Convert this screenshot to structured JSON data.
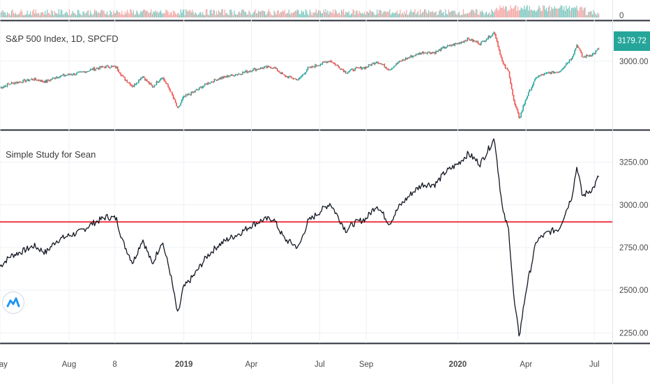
{
  "chart_data": [
    {
      "type": "bar",
      "title": "",
      "series": [
        {
          "name": "",
          "values": []
        }
      ],
      "axis_labels": [
        "0"
      ],
      "ylim": [
        0,
        1
      ]
    },
    {
      "type": "candlestick",
      "title": "S&P 500 Index, 1D, SPCFD",
      "last_price_label": "3179.72",
      "y_ticks": [
        "3000.00"
      ],
      "ylim": [
        2150,
        3450
      ],
      "colors": {
        "up": "#26a69a",
        "down": "#ef5350"
      }
    },
    {
      "type": "line",
      "title": "Simple Study for Sean",
      "series": [
        {
          "name": "",
          "color": "#131722",
          "x": [
            "2018-05-01",
            "2018-05-15",
            "2018-06-01",
            "2018-06-15",
            "2018-07-01",
            "2018-07-15",
            "2018-08-01",
            "2018-08-15",
            "2018-09-01",
            "2018-09-20",
            "2018-10-03",
            "2018-10-12",
            "2018-10-25",
            "2018-11-07",
            "2018-11-20",
            "2018-12-03",
            "2018-12-14",
            "2018-12-24",
            "2018-12-31",
            "2019-01-15",
            "2019-02-01",
            "2019-02-15",
            "2019-03-01",
            "2019-03-15",
            "2019-04-01",
            "2019-04-15",
            "2019-04-30",
            "2019-05-15",
            "2019-06-03",
            "2019-06-15",
            "2019-07-01",
            "2019-07-15",
            "2019-08-05",
            "2019-08-15",
            "2019-09-01",
            "2019-09-15",
            "2019-10-02",
            "2019-10-15",
            "2019-11-01",
            "2019-11-15",
            "2019-12-02",
            "2019-12-15",
            "2020-01-01",
            "2020-01-15",
            "2020-01-31",
            "2020-02-19",
            "2020-03-01",
            "2020-03-09",
            "2020-03-16",
            "2020-03-23",
            "2020-04-01",
            "2020-04-15",
            "2020-05-01",
            "2020-05-15",
            "2020-06-01",
            "2020-06-08",
            "2020-06-15",
            "2020-06-30",
            "2020-07-08"
          ],
          "values": [
            2640,
            2700,
            2730,
            2760,
            2720,
            2790,
            2820,
            2840,
            2890,
            2930,
            2920,
            2780,
            2660,
            2800,
            2650,
            2790,
            2600,
            2350,
            2510,
            2590,
            2700,
            2760,
            2800,
            2830,
            2880,
            2910,
            2920,
            2800,
            2750,
            2900,
            2960,
            3010,
            2850,
            2890,
            2920,
            3000,
            2890,
            2990,
            3070,
            3120,
            3120,
            3190,
            3240,
            3300,
            3240,
            3390,
            2960,
            2850,
            2440,
            2230,
            2500,
            2790,
            2840,
            2860,
            3050,
            3230,
            3050,
            3100,
            3179
          ]
        }
      ],
      "hline": {
        "value": 2900,
        "color": "#f23645"
      },
      "y_ticks": [
        2250,
        2500,
        2750,
        3000,
        3250
      ],
      "y_tick_labels": [
        "2250.00",
        "2500.00",
        "2750.00",
        "3000.00",
        "3250.00"
      ],
      "ylim": [
        2190,
        3420
      ],
      "x_ticks": [
        "2018-05-01",
        "2018-08-01",
        "2018-10-01",
        "2019-01-01",
        "2019-04-01",
        "2019-07-01",
        "2019-09-01",
        "2020-01-01",
        "2020-04-01",
        "2020-07-01"
      ],
      "x_tick_labels": [
        "May",
        "Aug",
        "8",
        "2019",
        "Apr",
        "Jul",
        "Sep",
        "2020",
        "Apr",
        "Jul"
      ],
      "xlim": [
        "2018-05-01",
        "2020-07-25"
      ],
      "grid": true
    }
  ]
}
